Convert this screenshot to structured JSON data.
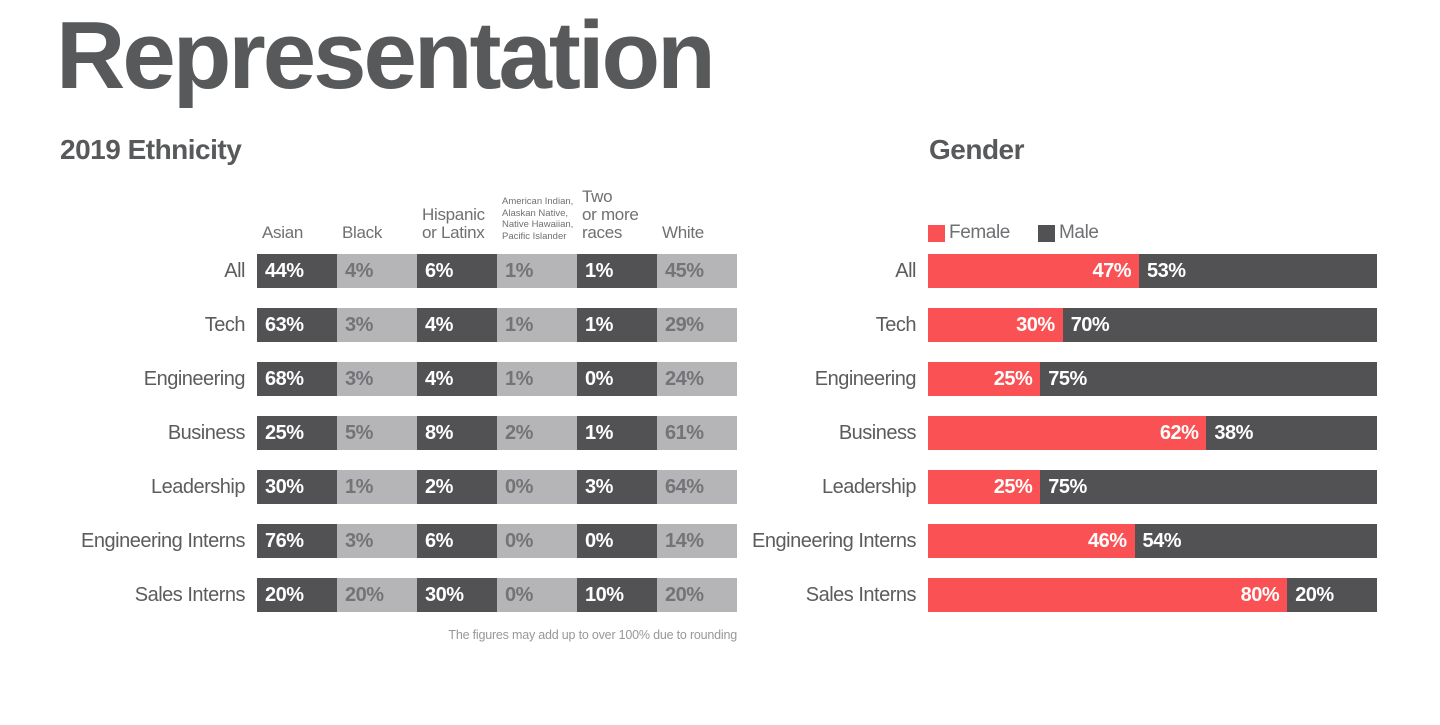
{
  "title": "Representation",
  "colors": {
    "female_red": "#FA5154",
    "male_dark": "#525254",
    "cell_dark": "#525254",
    "cell_light": "#B5B5B7",
    "title_gray": "#58595B"
  },
  "ethnicity": {
    "heading": "2019 Ethnicity",
    "columns": [
      "Asian",
      "Black",
      "Hispanic\nor Latinx",
      "American Indian,\nAlaskan Native,\nNative Hawaiian,\nPacific Islander",
      "Two\nor more\nraces",
      "White"
    ],
    "rows": [
      {
        "label": "All",
        "values": [
          "44%",
          "4%",
          "6%",
          "1%",
          "1%",
          "45%"
        ]
      },
      {
        "label": "Tech",
        "values": [
          "63%",
          "3%",
          "4%",
          "1%",
          "1%",
          "29%"
        ]
      },
      {
        "label": "Engineering",
        "values": [
          "68%",
          "3%",
          "4%",
          "1%",
          "0%",
          "24%"
        ]
      },
      {
        "label": "Business",
        "values": [
          "25%",
          "5%",
          "8%",
          "2%",
          "1%",
          "61%"
        ]
      },
      {
        "label": "Leadership",
        "values": [
          "30%",
          "1%",
          "2%",
          "0%",
          "3%",
          "64%"
        ]
      },
      {
        "label": "Engineering Interns",
        "values": [
          "76%",
          "3%",
          "6%",
          "0%",
          "0%",
          "14%"
        ]
      },
      {
        "label": "Sales Interns",
        "values": [
          "20%",
          "20%",
          "30%",
          "0%",
          "10%",
          "20%"
        ]
      }
    ],
    "footnote": "The figures may add up to over 100% due to rounding"
  },
  "gender": {
    "heading": "Gender",
    "legend": {
      "female": "Female",
      "male": "Male"
    },
    "rows": [
      {
        "label": "All",
        "female_label": "47%",
        "male_label": "53%",
        "female_pct": 47
      },
      {
        "label": "Tech",
        "female_label": "30%",
        "male_label": "70%",
        "female_pct": 30
      },
      {
        "label": "Engineering",
        "female_label": "25%",
        "male_label": "75%",
        "female_pct": 25
      },
      {
        "label": "Business",
        "female_label": "62%",
        "male_label": "38%",
        "female_pct": 62
      },
      {
        "label": "Leadership",
        "female_label": "25%",
        "male_label": "75%",
        "female_pct": 25
      },
      {
        "label": "Engineering Interns",
        "female_label": "46%",
        "male_label": "54%",
        "female_pct": 46
      },
      {
        "label": "Sales Interns",
        "female_label": "80%",
        "male_label": "20%",
        "female_pct": 80
      }
    ]
  },
  "chart_data": [
    {
      "type": "table",
      "title": "2019 Ethnicity",
      "categories": [
        "All",
        "Tech",
        "Engineering",
        "Business",
        "Leadership",
        "Engineering Interns",
        "Sales Interns"
      ],
      "series": [
        {
          "name": "Asian",
          "values": [
            44,
            63,
            68,
            25,
            30,
            76,
            20
          ]
        },
        {
          "name": "Black",
          "values": [
            4,
            3,
            3,
            5,
            1,
            3,
            20
          ]
        },
        {
          "name": "Hispanic or Latinx",
          "values": [
            6,
            4,
            4,
            8,
            2,
            6,
            30
          ]
        },
        {
          "name": "American Indian, Alaskan Native, Native Hawaiian, Pacific Islander",
          "values": [
            1,
            1,
            1,
            2,
            0,
            0,
            0
          ]
        },
        {
          "name": "Two or more races",
          "values": [
            1,
            1,
            0,
            1,
            3,
            0,
            10
          ]
        },
        {
          "name": "White",
          "values": [
            45,
            29,
            24,
            61,
            64,
            14,
            20
          ]
        }
      ],
      "unit": "%",
      "note": "The figures may add up to over 100% due to rounding"
    },
    {
      "type": "bar",
      "subtype": "stacked-horizontal",
      "title": "Gender",
      "categories": [
        "All",
        "Tech",
        "Engineering",
        "Business",
        "Leadership",
        "Engineering Interns",
        "Sales Interns"
      ],
      "series": [
        {
          "name": "Female",
          "color": "#FA5154",
          "values": [
            47,
            30,
            25,
            62,
            25,
            46,
            80
          ]
        },
        {
          "name": "Male",
          "color": "#525254",
          "values": [
            53,
            70,
            75,
            38,
            75,
            54,
            20
          ]
        }
      ],
      "unit": "%",
      "xlim": [
        0,
        100
      ],
      "legend_position": "top"
    }
  ]
}
